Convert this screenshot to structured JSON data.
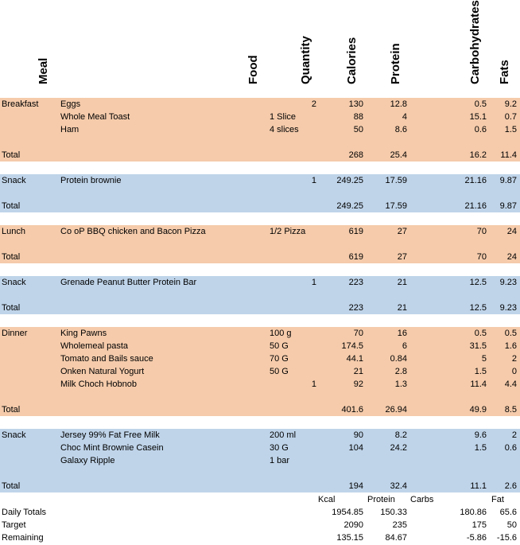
{
  "headers": {
    "meal": "Meal",
    "food": "Food",
    "quantity": "Quantity",
    "calories": "Calories",
    "protein": "Protein",
    "carbohydrates": "Carbohydrates",
    "fats": "Fats"
  },
  "total_label": "Total",
  "groups": [
    {
      "meal": "Breakfast",
      "color": "#f5cbab",
      "items": [
        {
          "food": "Eggs",
          "portion": "",
          "qty": "2",
          "cal": "130",
          "protein": "12.8",
          "carbs": "0.5",
          "fat": "9.2"
        },
        {
          "food": "Whole Meal Toast",
          "portion": "1 Slice",
          "qty": "",
          "cal": "88",
          "protein": "4",
          "carbs": "15.1",
          "fat": "0.7"
        },
        {
          "food": "Ham",
          "portion": "4 slices",
          "qty": "",
          "cal": "50",
          "protein": "8.6",
          "carbs": "0.6",
          "fat": "1.5"
        }
      ],
      "total": {
        "cal": "268",
        "protein": "25.4",
        "carbs": "16.2",
        "fat": "11.4"
      }
    },
    {
      "meal": "Snack",
      "color": "#bfd4e9",
      "items": [
        {
          "food": "Protein brownie",
          "portion": "",
          "qty": "1",
          "cal": "249.25",
          "protein": "17.59",
          "carbs": "21.16",
          "fat": "9.87"
        }
      ],
      "total": {
        "cal": "249.25",
        "protein": "17.59",
        "carbs": "21.16",
        "fat": "9.87"
      }
    },
    {
      "meal": "Lunch",
      "color": "#f5cbab",
      "items": [
        {
          "food": "Co oP BBQ chicken and Bacon Pizza",
          "portion": "1/2 Pizza",
          "qty": "",
          "cal": "619",
          "protein": "27",
          "carbs": "70",
          "fat": "24"
        }
      ],
      "total": {
        "cal": "619",
        "protein": "27",
        "carbs": "70",
        "fat": "24"
      }
    },
    {
      "meal": "Snack",
      "color": "#bfd4e9",
      "items": [
        {
          "food": "Grenade Peanut Butter Protein Bar",
          "portion": "",
          "qty": "1",
          "cal": "223",
          "protein": "21",
          "carbs": "12.5",
          "fat": "9.23"
        }
      ],
      "total": {
        "cal": "223",
        "protein": "21",
        "carbs": "12.5",
        "fat": "9.23"
      }
    },
    {
      "meal": "Dinner",
      "color": "#f5cbab",
      "items": [
        {
          "food": "King Pawns",
          "portion": "100 g",
          "qty": "",
          "cal": "70",
          "protein": "16",
          "carbs": "0.5",
          "fat": "0.5"
        },
        {
          "food": "Wholemeal pasta",
          "portion": "50 G",
          "qty": "",
          "cal": "174.5",
          "protein": "6",
          "carbs": "31.5",
          "fat": "1.6"
        },
        {
          "food": "Tomato and Bails sauce",
          "portion": "70 G",
          "qty": "",
          "cal": "44.1",
          "protein": "0.84",
          "carbs": "5",
          "fat": "2"
        },
        {
          "food": "Onken Natural Yogurt",
          "portion": "50 G",
          "qty": "",
          "cal": "21",
          "protein": "2.8",
          "carbs": "1.5",
          "fat": "0"
        },
        {
          "food": "Milk Choch Hobnob",
          "portion": "",
          "qty": "1",
          "cal": "92",
          "protein": "1.3",
          "carbs": "11.4",
          "fat": "4.4"
        }
      ],
      "total": {
        "cal": "401.6",
        "protein": "26.94",
        "carbs": "49.9",
        "fat": "8.5"
      }
    },
    {
      "meal": "Snack",
      "color": "#bfd4e9",
      "items": [
        {
          "food": "Jersey 99% Fat Free Milk",
          "portion": "200 ml",
          "qty": "",
          "cal": "90",
          "protein": "8.2",
          "carbs": "9.6",
          "fat": "2"
        },
        {
          "food": "Choc Mint Brownie Casein",
          "portion": "30 G",
          "qty": "",
          "cal": "104",
          "protein": "24.2",
          "carbs": "1.5",
          "fat": "0.6"
        },
        {
          "food": "Galaxy Ripple",
          "portion": "1 bar",
          "qty": "",
          "cal": "",
          "protein": "",
          "carbs": "",
          "fat": ""
        }
      ],
      "total": {
        "cal": "194",
        "protein": "32.4",
        "carbs": "11.1",
        "fat": "2.6"
      }
    }
  ],
  "summary": {
    "headers": {
      "kcal": "Kcal",
      "protein": "Protein",
      "carbs": "Carbs",
      "fat": "Fat"
    },
    "rows": [
      {
        "label": "Daily Totals",
        "kcal": "1954.85",
        "protein": "150.33",
        "carbs": "180.86",
        "fat": "65.6"
      },
      {
        "label": "Target",
        "kcal": "2090",
        "protein": "235",
        "carbs": "175",
        "fat": "50"
      },
      {
        "label": "Remaining",
        "kcal": "135.15",
        "protein": "84.67",
        "carbs": "-5.86",
        "fat": "-15.6"
      }
    ]
  }
}
